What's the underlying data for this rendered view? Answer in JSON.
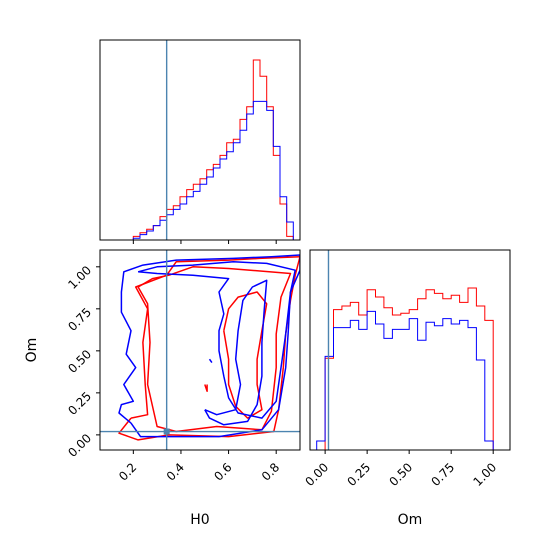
{
  "chart_data": [
    {
      "type": "histogram",
      "panel": "H0 marginal",
      "xlim": [
        0.06,
        0.9
      ],
      "xticks": [
        0.2,
        0.4,
        0.6,
        0.8
      ],
      "show_tick_labels": false,
      "truth": 0.34,
      "bin_edges": [
        0.06,
        0.088,
        0.116,
        0.144,
        0.172,
        0.2,
        0.228,
        0.256,
        0.284,
        0.312,
        0.34,
        0.368,
        0.396,
        0.424,
        0.452,
        0.48,
        0.508,
        0.536,
        0.564,
        0.592,
        0.62,
        0.648,
        0.676,
        0.704,
        0.732,
        0.76,
        0.788,
        0.816,
        0.844,
        0.872,
        0.9
      ],
      "series": [
        {
          "color": "#ff0000",
          "values": [
            0.0,
            0.0,
            0.0,
            0.0,
            0.0,
            0.02,
            0.04,
            0.06,
            0.08,
            0.13,
            0.17,
            0.19,
            0.24,
            0.28,
            0.31,
            0.34,
            0.39,
            0.42,
            0.47,
            0.54,
            0.56,
            0.67,
            0.74,
            1.0,
            0.91,
            0.74,
            0.47,
            0.2,
            0.02,
            0.0
          ]
        },
        {
          "color": "#0000ff",
          "values": [
            0.0,
            0.0,
            0.0,
            0.0,
            0.0,
            0.01,
            0.03,
            0.05,
            0.08,
            0.11,
            0.14,
            0.17,
            0.2,
            0.24,
            0.27,
            0.31,
            0.35,
            0.4,
            0.45,
            0.49,
            0.54,
            0.61,
            0.7,
            0.77,
            0.77,
            0.72,
            0.52,
            0.24,
            0.1,
            0.0
          ]
        }
      ]
    },
    {
      "type": "contour",
      "panel": "H0 vs Om joint",
      "xlabel": "H0",
      "ylabel": "Om",
      "xlim": [
        0.06,
        0.9
      ],
      "ylim": [
        -0.09,
        1.1
      ],
      "xticks": [
        0.2,
        0.4,
        0.6,
        0.8
      ],
      "xtick_labels": [
        "0.2",
        "0.4",
        "0.6",
        "0.8"
      ],
      "yticks": [
        0.0,
        0.25,
        0.5,
        0.75,
        1.0
      ],
      "ytick_labels": [
        "0.00",
        "0.25",
        "0.50",
        "0.75",
        "1.00"
      ],
      "truth": [
        0.34,
        0.02
      ],
      "series": [
        {
          "color": "#ff0000",
          "contours": [
            [
              [
                0.19,
                0.1
              ],
              [
                0.26,
                0.12
              ],
              [
                0.25,
                0.3
              ],
              [
                0.24,
                0.55
              ],
              [
                0.26,
                0.75
              ],
              [
                0.21,
                0.88
              ],
              [
                0.34,
                0.95
              ],
              [
                0.38,
                1.03
              ],
              [
                0.6,
                1.04
              ],
              [
                0.73,
                1.05
              ],
              [
                0.9,
                1.06
              ],
              [
                0.88,
                0.95
              ],
              [
                0.86,
                0.8
              ],
              [
                0.84,
                0.6
              ],
              [
                0.83,
                0.4
              ],
              [
                0.81,
                0.15
              ],
              [
                0.79,
                0.02
              ],
              [
                0.6,
                -0.01
              ],
              [
                0.35,
                0.0
              ],
              [
                0.22,
                -0.03
              ],
              [
                0.14,
                0.01
              ],
              [
                0.19,
                0.1
              ]
            ],
            [
              [
                0.35,
                0.95
              ],
              [
                0.28,
                0.93
              ],
              [
                0.22,
                0.88
              ],
              [
                0.26,
                0.78
              ],
              [
                0.27,
                0.55
              ],
              [
                0.26,
                0.3
              ],
              [
                0.3,
                0.05
              ],
              [
                0.38,
                0.02
              ],
              [
                0.55,
                0.05
              ],
              [
                0.74,
                0.03
              ],
              [
                0.78,
                0.14
              ],
              [
                0.8,
                0.4
              ],
              [
                0.8,
                0.6
              ],
              [
                0.82,
                0.82
              ],
              [
                0.86,
                0.96
              ],
              [
                0.6,
                0.99
              ],
              [
                0.45,
                1.0
              ],
              [
                0.35,
                0.95
              ]
            ],
            [
              [
                0.58,
                0.62
              ],
              [
                0.6,
                0.75
              ],
              [
                0.64,
                0.82
              ],
              [
                0.72,
                0.85
              ],
              [
                0.76,
                0.78
              ],
              [
                0.74,
                0.62
              ],
              [
                0.72,
                0.45
              ],
              [
                0.72,
                0.3
              ],
              [
                0.74,
                0.15
              ],
              [
                0.68,
                0.1
              ],
              [
                0.63,
                0.17
              ],
              [
                0.6,
                0.3
              ],
              [
                0.6,
                0.45
              ],
              [
                0.58,
                0.62
              ]
            ],
            [
              [
                0.51,
                0.3
              ],
              [
                0.51,
                0.26
              ],
              [
                0.5,
                0.3
              ]
            ]
          ]
        },
        {
          "color": "#0000ff",
          "contours": [
            [
              [
                0.19,
                0.07
              ],
              [
                0.14,
                0.13
              ],
              [
                0.15,
                0.18
              ],
              [
                0.2,
                0.2
              ],
              [
                0.16,
                0.3
              ],
              [
                0.21,
                0.4
              ],
              [
                0.17,
                0.48
              ],
              [
                0.19,
                0.62
              ],
              [
                0.15,
                0.73
              ],
              [
                0.15,
                0.85
              ],
              [
                0.16,
                0.97
              ],
              [
                0.24,
                1.01
              ],
              [
                0.38,
                1.04
              ],
              [
                0.62,
                1.05
              ],
              [
                0.78,
                1.06
              ],
              [
                0.9,
                1.07
              ],
              [
                0.9,
                0.98
              ],
              [
                0.86,
                0.85
              ],
              [
                0.85,
                0.6
              ],
              [
                0.84,
                0.4
              ],
              [
                0.81,
                0.15
              ],
              [
                0.74,
                0.03
              ],
              [
                0.56,
                -0.01
              ],
              [
                0.38,
                -0.01
              ],
              [
                0.23,
                -0.01
              ],
              [
                0.19,
                0.07
              ]
            ],
            [
              [
                0.22,
                0.97
              ],
              [
                0.3,
                1.0
              ],
              [
                0.45,
                1.01
              ],
              [
                0.62,
                1.03
              ],
              [
                0.76,
                1.02
              ],
              [
                0.88,
                0.98
              ],
              [
                0.86,
                0.85
              ],
              [
                0.84,
                0.6
              ],
              [
                0.82,
                0.4
              ],
              [
                0.8,
                0.2
              ],
              [
                0.74,
                0.1
              ],
              [
                0.64,
                0.13
              ],
              [
                0.6,
                0.22
              ],
              [
                0.58,
                0.35
              ],
              [
                0.56,
                0.5
              ],
              [
                0.56,
                0.62
              ],
              [
                0.58,
                0.72
              ],
              [
                0.56,
                0.85
              ],
              [
                0.6,
                0.93
              ],
              [
                0.45,
                0.95
              ],
              [
                0.3,
                0.96
              ],
              [
                0.22,
                0.97
              ]
            ],
            [
              [
                0.5,
                0.15
              ],
              [
                0.55,
                0.12
              ],
              [
                0.63,
                0.15
              ],
              [
                0.65,
                0.3
              ],
              [
                0.63,
                0.45
              ],
              [
                0.64,
                0.62
              ],
              [
                0.66,
                0.8
              ],
              [
                0.7,
                0.88
              ],
              [
                0.76,
                0.92
              ],
              [
                0.75,
                0.75
              ],
              [
                0.74,
                0.55
              ],
              [
                0.74,
                0.35
              ],
              [
                0.72,
                0.18
              ],
              [
                0.68,
                0.08
              ],
              [
                0.58,
                0.06
              ],
              [
                0.52,
                0.1
              ],
              [
                0.5,
                0.15
              ]
            ],
            [
              [
                0.52,
                0.45
              ],
              [
                0.53,
                0.43
              ]
            ]
          ]
        }
      ]
    },
    {
      "type": "histogram",
      "panel": "Om marginal",
      "xlabel": "Om",
      "xlim": [
        -0.09,
        1.1
      ],
      "xticks": [
        0.0,
        0.25,
        0.5,
        0.75,
        1.0
      ],
      "xtick_labels": [
        "0.00",
        "0.25",
        "0.50",
        "0.75",
        "1.00"
      ],
      "truth": 0.02,
      "bin_edges": [
        -0.05,
        0.0,
        0.05,
        0.1,
        0.15,
        0.2,
        0.25,
        0.3,
        0.35,
        0.4,
        0.45,
        0.5,
        0.55,
        0.6,
        0.65,
        0.7,
        0.75,
        0.8,
        0.85,
        0.9,
        0.95,
        1.0,
        1.05
      ],
      "series": [
        {
          "color": "#ff0000",
          "values": [
            0.0,
            0.51,
            0.78,
            0.8,
            0.82,
            0.75,
            0.89,
            0.85,
            0.79,
            0.75,
            0.76,
            0.78,
            0.84,
            0.89,
            0.87,
            0.84,
            0.86,
            0.82,
            0.9,
            0.8,
            0.72,
            0.0
          ]
        },
        {
          "color": "#0000ff",
          "values": [
            0.05,
            0.52,
            0.68,
            0.68,
            0.72,
            0.67,
            0.77,
            0.7,
            0.62,
            0.67,
            0.67,
            0.73,
            0.61,
            0.71,
            0.69,
            0.73,
            0.7,
            0.72,
            0.68,
            0.5,
            0.05,
            0.0
          ]
        }
      ]
    }
  ],
  "colors": {
    "truth": "#4c84b0",
    "frame": "#000000"
  }
}
